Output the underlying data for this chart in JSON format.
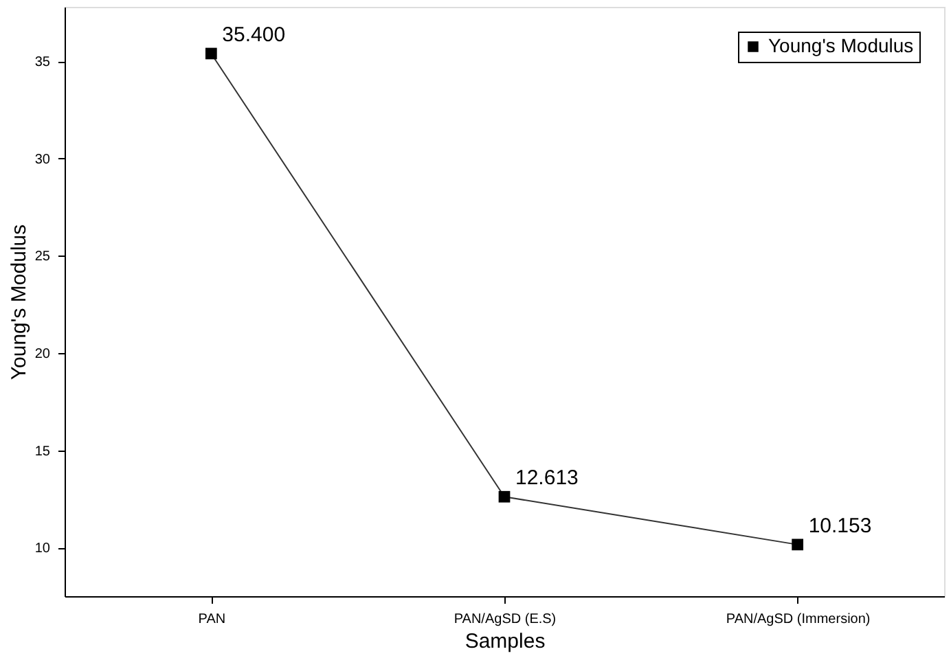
{
  "chart_data": {
    "type": "line",
    "xlabel": "Samples",
    "ylabel": "Young's Modulus",
    "categories": [
      "PAN",
      "PAN/AgSD (E.S)",
      "PAN/AgSD (Immersion)"
    ],
    "series": [
      {
        "name": "Young's Modulus",
        "color": "#000000",
        "values": [
          35.4,
          12.613,
          10.153
        ],
        "value_labels": [
          "35.400",
          "12.613",
          "10.153"
        ]
      }
    ],
    "ylim": [
      7.5,
      37.8
    ],
    "yticks": [
      10,
      15,
      20,
      25,
      30,
      35
    ],
    "grid": false,
    "legend": "top right",
    "marker": "square",
    "line_style": "solid"
  }
}
